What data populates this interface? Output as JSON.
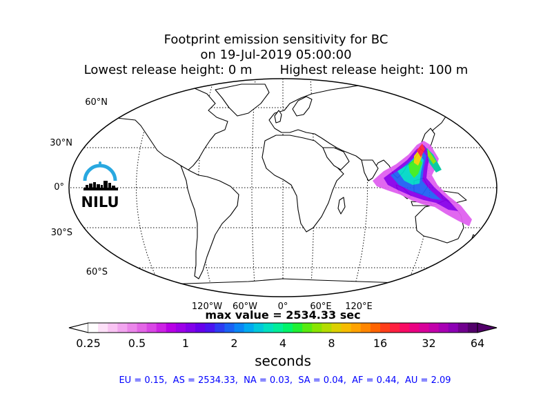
{
  "title": {
    "line1": "Footprint emission sensitivity for BC",
    "line2": "on 19-Jul-2019 05:00:00",
    "line3": "Lowest release height: 0 m       Highest release height: 100 m"
  },
  "logo": {
    "text": "NILU",
    "color": "#29a8e0"
  },
  "map": {
    "projection": "robinson",
    "lat_labels": [
      "60°N",
      "30°N",
      "0°",
      "30°S",
      "60°S"
    ],
    "lon_labels": [
      "120°W",
      "60°W",
      "0°",
      "60°E",
      "120°E"
    ]
  },
  "max_value_text": "max value = 2534.33 sec",
  "colorbar": {
    "tick_labels": [
      "0.25",
      "0.5",
      "1",
      "2",
      "4",
      "8",
      "16",
      "32",
      "64"
    ],
    "unit_label": "seconds",
    "colors": [
      "#ffffff",
      "#fde0f8",
      "#f9c3f3",
      "#f2a5ef",
      "#eb86ea",
      "#e366e6",
      "#d946e5",
      "#cc22e4",
      "#b800e6",
      "#9d00e8",
      "#8200ea",
      "#6600ec",
      "#4a14f0",
      "#2d3cf2",
      "#1a62f4",
      "#0a86f6",
      "#00aaf0",
      "#00c8dc",
      "#00e0c0",
      "#00ee9a",
      "#00f46a",
      "#20f034",
      "#58ea10",
      "#8ae400",
      "#b4dc00",
      "#dcd000",
      "#f6bc00",
      "#ffa200",
      "#ff8600",
      "#ff6400",
      "#ff3e1a",
      "#ff2040",
      "#f80a64",
      "#ea0082",
      "#d8009a",
      "#c200aa",
      "#a800b4",
      "#8c00b4",
      "#70008e",
      "#52006a"
    ]
  },
  "regions_text": "EU = 0.15,  AS = 2534.33,  NA = 0.03,  SA = 0.04,  AF = 0.44,  AU = 2.09"
}
